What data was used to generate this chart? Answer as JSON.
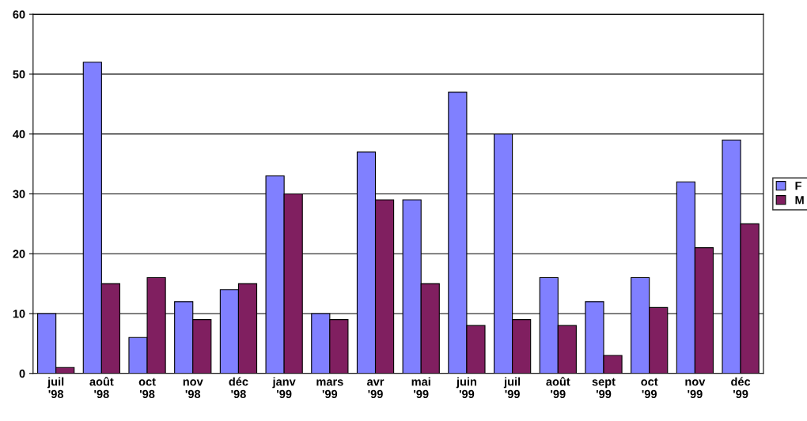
{
  "chart_data": {
    "type": "bar",
    "categories": [
      "juil\n'98",
      "août\n'98",
      "oct\n'98",
      "nov\n'98",
      "déc\n'98",
      "janv\n'99",
      "mars\n'99",
      "avr\n'99",
      "mai\n'99",
      "juin\n'99",
      "juil\n'99",
      "août\n'99",
      "sept\n'99",
      "oct\n'99",
      "nov\n'99",
      "déc\n'99"
    ],
    "series": [
      {
        "name": "F",
        "color": "#8080ff",
        "values": [
          10,
          52,
          6,
          12,
          14,
          33,
          10,
          37,
          29,
          47,
          40,
          16,
          12,
          16,
          32,
          39
        ]
      },
      {
        "name": "M",
        "color": "#801f60",
        "values": [
          1,
          15,
          16,
          9,
          15,
          30,
          9,
          29,
          15,
          8,
          9,
          8,
          3,
          11,
          21,
          25
        ]
      }
    ],
    "ylim": [
      0,
      60
    ],
    "yticks": [
      0,
      10,
      20,
      30,
      40,
      50,
      60
    ],
    "grid": "y",
    "legend": "right"
  }
}
